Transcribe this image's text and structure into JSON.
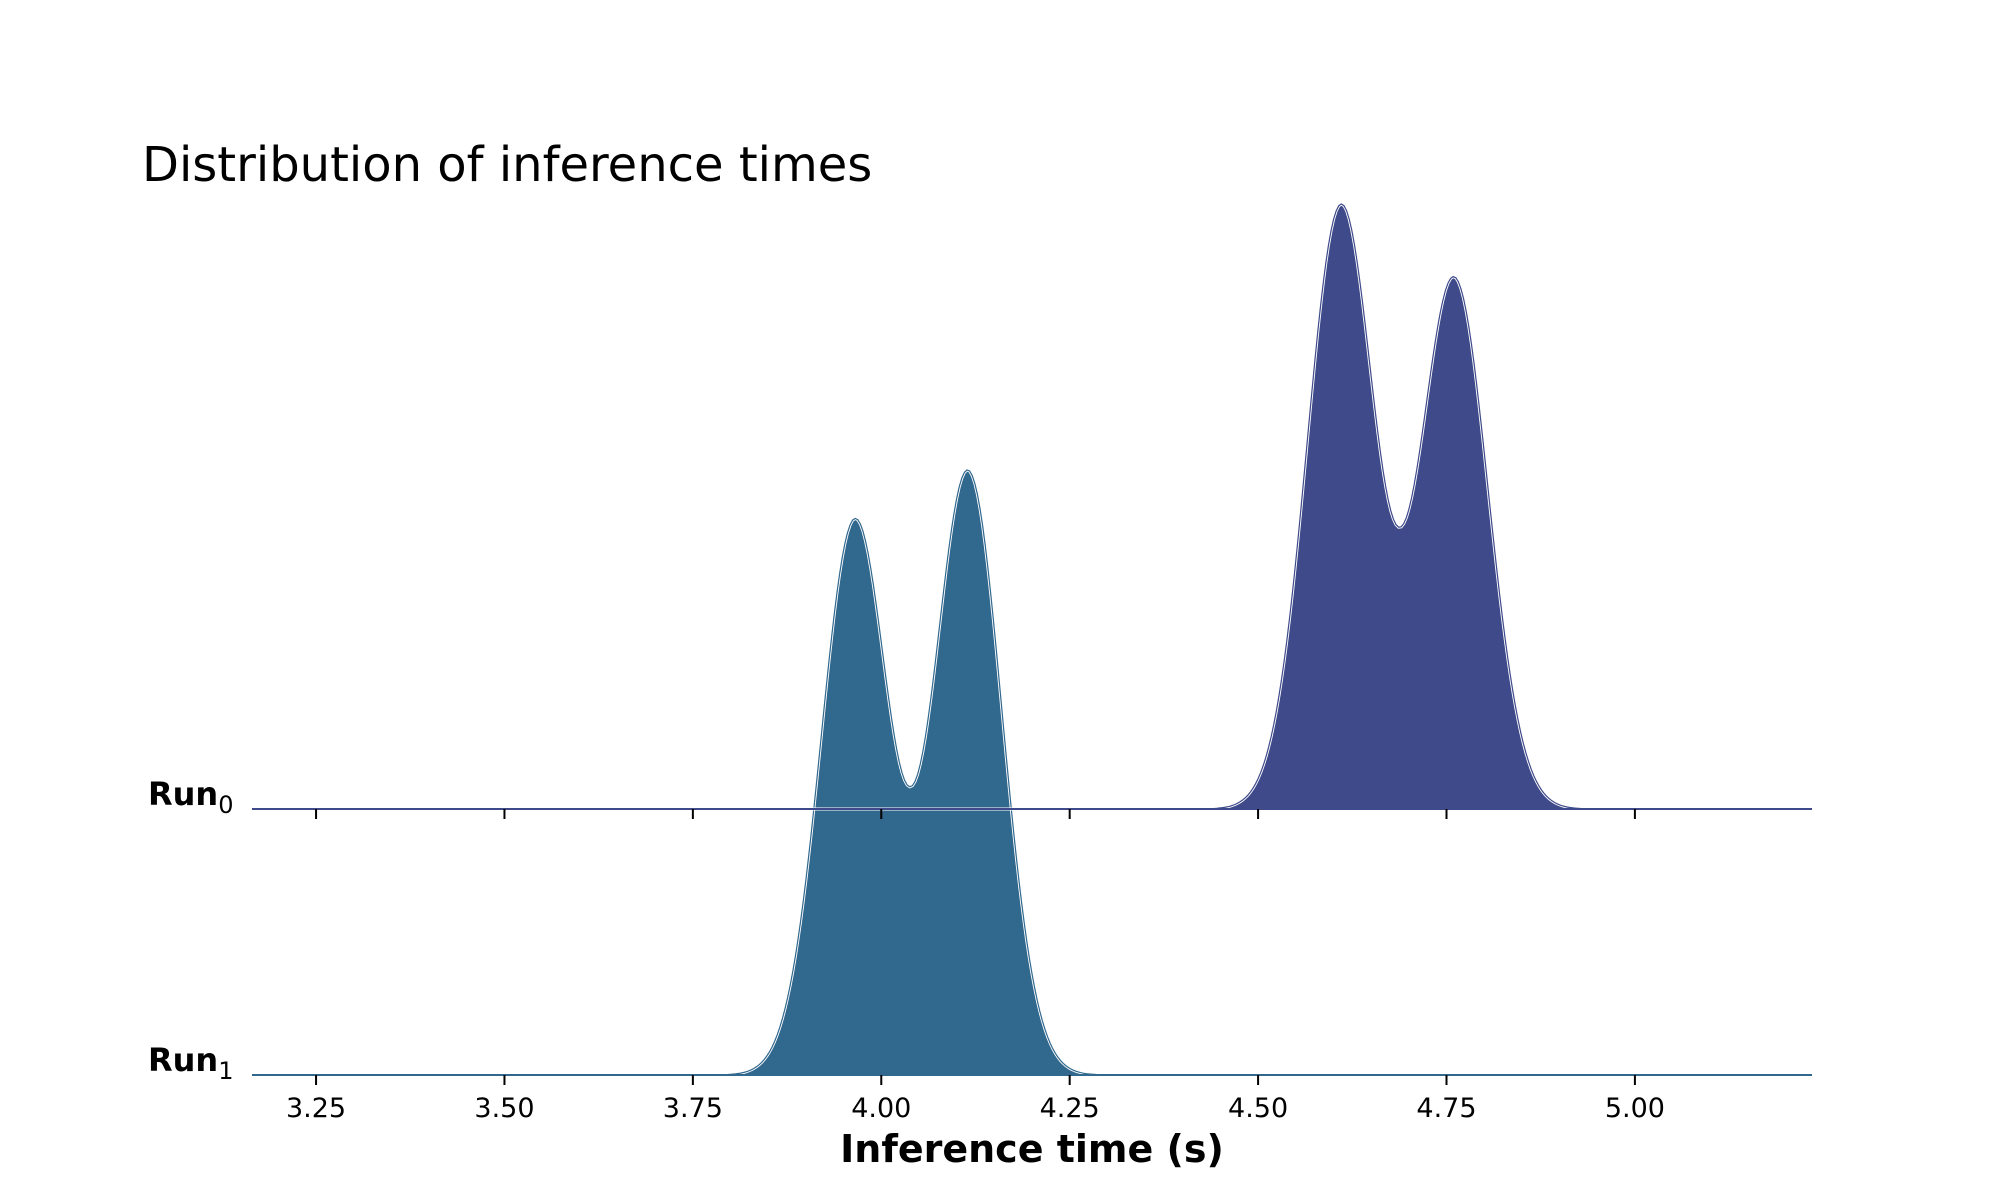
{
  "chart_data": {
    "type": "area",
    "title": "Distribution of inference times",
    "xlabel": "Inference time (s)",
    "ylabel": "",
    "xlim": [
      3.165,
      5.235
    ],
    "x_ticks": [
      3.25,
      3.5,
      3.75,
      4.0,
      4.25,
      4.5,
      4.75,
      5.0
    ],
    "x_tick_labels": [
      "3.25",
      "3.50",
      "3.75",
      "4.00",
      "4.25",
      "4.50",
      "4.75",
      "5.00"
    ],
    "grid": false,
    "legend": "none",
    "series": [
      {
        "label_main": "Run",
        "label_sub": "0",
        "color": "#3f4a8a",
        "peaks": [
          {
            "x": 4.61,
            "density": 1.0
          },
          {
            "x": 4.76,
            "density": 0.88
          }
        ],
        "dip": {
          "x": 4.685,
          "density": 0.57
        }
      },
      {
        "label_main": "Run",
        "label_sub": "1",
        "color": "#31688e",
        "peaks": [
          {
            "x": 3.965,
            "density": 0.92
          },
          {
            "x": 4.115,
            "density": 1.0
          }
        ],
        "dip": {
          "x": 4.04,
          "density": 0.57
        }
      }
    ]
  }
}
